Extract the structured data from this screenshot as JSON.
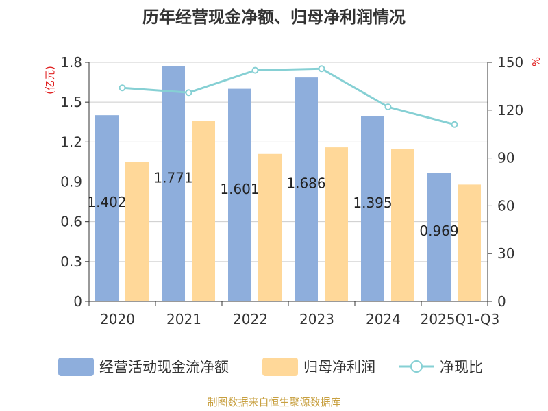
{
  "chart_data": {
    "type": "bar",
    "title": "历年经营现金净额、归母净利润情况",
    "categories": [
      "2020",
      "2021",
      "2022",
      "2023",
      "2024",
      "2025Q1-Q3"
    ],
    "series": [
      {
        "name": "经营活动现金流净额",
        "type": "bar",
        "axis": "left",
        "color": "#8eaedc",
        "values": [
          1.402,
          1.771,
          1.601,
          1.686,
          1.395,
          0.969
        ],
        "labels": [
          "1.402",
          "1.771",
          "1.601",
          "1.686",
          "1.395",
          "0.969"
        ]
      },
      {
        "name": "归母净利润",
        "type": "bar",
        "axis": "left",
        "color": "#ffd899",
        "values": [
          1.05,
          1.36,
          1.11,
          1.16,
          1.15,
          0.88
        ]
      },
      {
        "name": "净现比",
        "type": "line",
        "axis": "right",
        "color": "#86d0d4",
        "values": [
          134,
          131,
          145,
          146,
          122,
          111
        ]
      }
    ],
    "y_left": {
      "unit": "(亿元)",
      "ylim": [
        0,
        1.8
      ],
      "ticks": [
        "0",
        "0.3",
        "0.6",
        "0.9",
        "1.2",
        "1.5",
        "1.8"
      ]
    },
    "y_right": {
      "unit": "%",
      "ylim": [
        0,
        150
      ],
      "ticks": [
        "0",
        "30",
        "60",
        "90",
        "120",
        "150"
      ]
    },
    "grid": true,
    "legend_position": "bottom"
  },
  "source": "制图数据来自恒生聚源数据库"
}
